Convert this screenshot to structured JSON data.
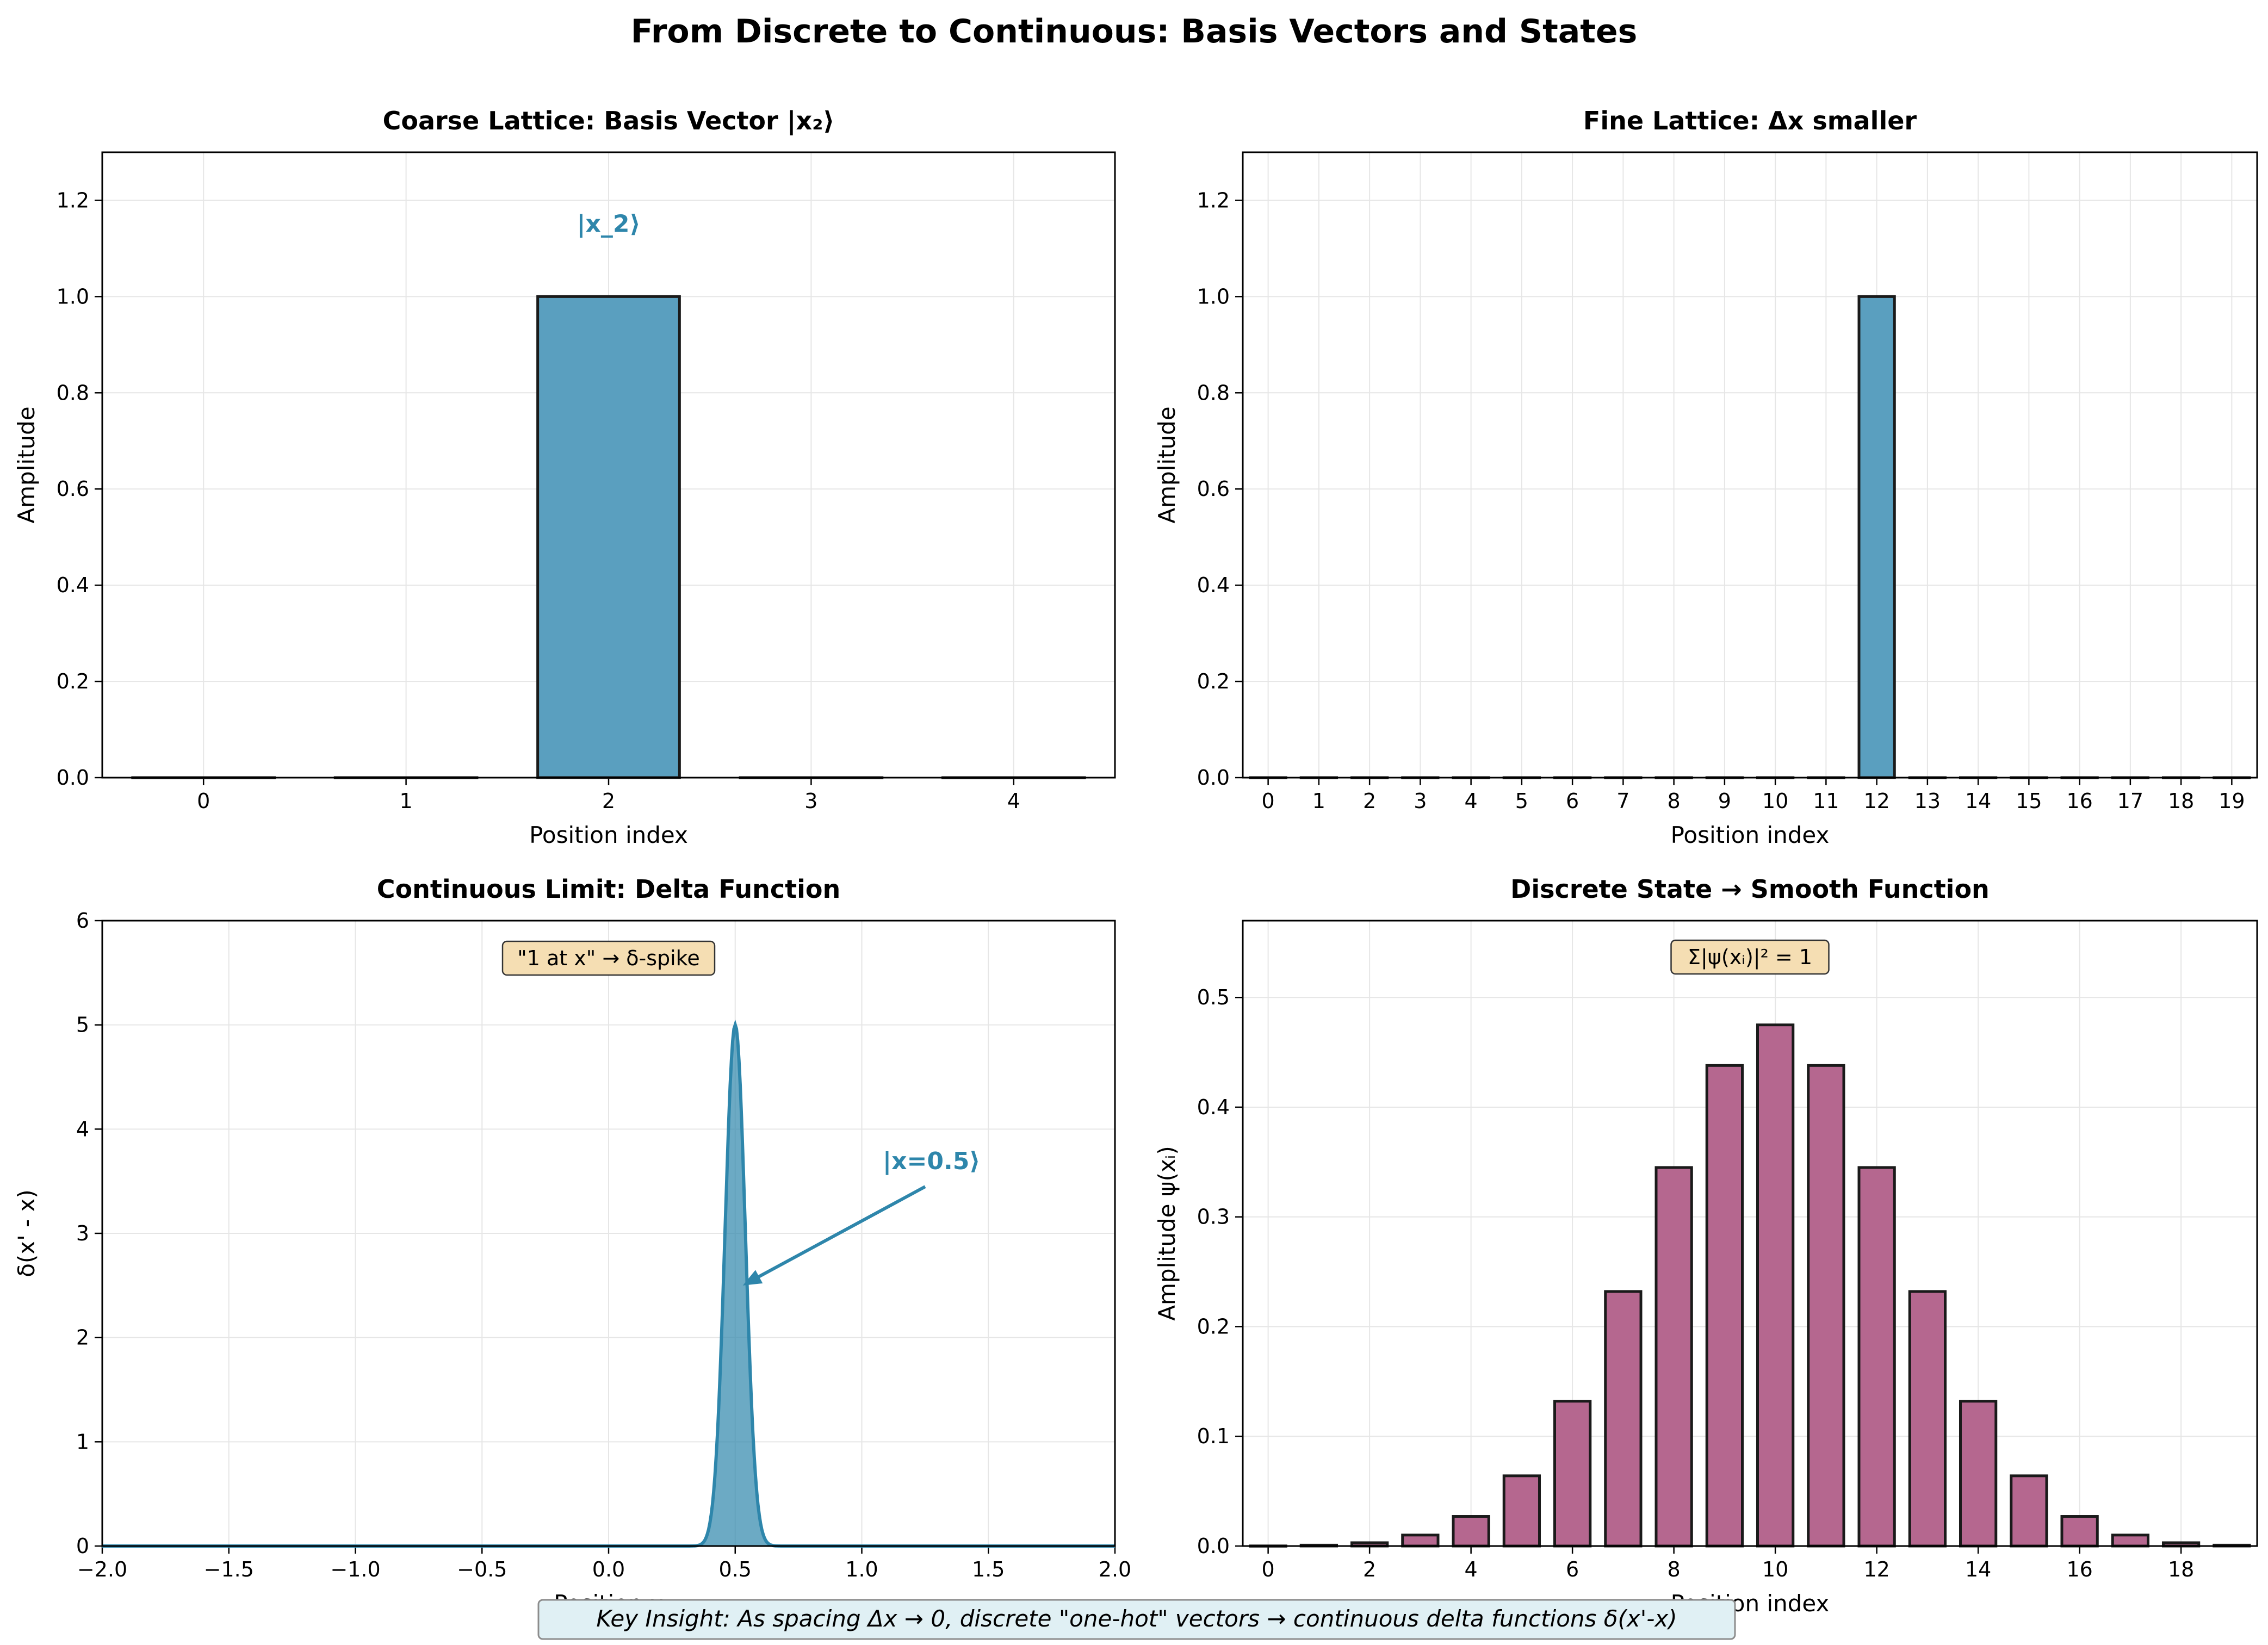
{
  "figure": {
    "title": "From Discrete to Continuous: Basis Vectors and States",
    "footnote": "Key Insight: As spacing Δx → 0, discrete \"one-hot\" vectors → continuous delta functions δ(x'-x)"
  },
  "colors": {
    "blue": "#2E86AB",
    "bar_blue": "#5a9fbf",
    "purple": "#A23B72",
    "bar_purple": "#b5678f",
    "annot_box": "#F5DEB3",
    "footnote_box": "#E0F0F4",
    "grid": "#e6e6e6"
  },
  "chart_data": [
    {
      "type": "bar",
      "title": "Coarse Lattice: Basis Vector |x₂⟩",
      "xlabel": "Position index",
      "ylabel": "Amplitude",
      "categories": [
        0,
        1,
        2,
        3,
        4
      ],
      "values": [
        0,
        0,
        1,
        0,
        0
      ],
      "ylim": [
        0,
        1.3
      ],
      "yticks": [
        "0.0",
        "0.2",
        "0.4",
        "0.6",
        "0.8",
        "1.0",
        "1.2"
      ],
      "xticks": [
        "0",
        "1",
        "2",
        "3",
        "4"
      ],
      "annotation": {
        "text": "|x_2⟩",
        "x": 2,
        "y": 1.15
      },
      "grid": true
    },
    {
      "type": "bar",
      "title": "Fine Lattice: Δx smaller",
      "xlabel": "Position index",
      "ylabel": "Amplitude",
      "categories": [
        0,
        1,
        2,
        3,
        4,
        5,
        6,
        7,
        8,
        9,
        10,
        11,
        12,
        13,
        14,
        15,
        16,
        17,
        18,
        19
      ],
      "values": [
        0,
        0,
        0,
        0,
        0,
        0,
        0,
        0,
        0,
        0,
        0,
        0,
        1,
        0,
        0,
        0,
        0,
        0,
        0,
        0
      ],
      "ylim": [
        0,
        1.3
      ],
      "yticks": [
        "0.0",
        "0.2",
        "0.4",
        "0.6",
        "0.8",
        "1.0",
        "1.2"
      ],
      "xticks": [
        "0",
        "1",
        "2",
        "3",
        "4",
        "5",
        "6",
        "7",
        "8",
        "9",
        "10",
        "11",
        "12",
        "13",
        "14",
        "15",
        "16",
        "17",
        "18",
        "19"
      ],
      "grid": true
    },
    {
      "type": "area",
      "title": "Continuous Limit: Delta Function",
      "xlabel": "Position x",
      "ylabel": "δ(x' - x)",
      "xlim": [
        -2,
        2
      ],
      "ylim": [
        0,
        6
      ],
      "peak": {
        "center": 0.5,
        "height": 5,
        "sigma": 0.04
      },
      "xticks": [
        "−2.0",
        "−1.5",
        "−1.0",
        "−0.5",
        "0.0",
        "0.5",
        "1.0",
        "1.5",
        "2.0"
      ],
      "yticks": [
        "0",
        "1",
        "2",
        "3",
        "4",
        "5",
        "6"
      ],
      "textbox": "\"1 at x\" → δ-spike",
      "annotation": {
        "text": "|x=0.5⟩",
        "text_x": 1.1,
        "text_y": 3.5,
        "arrow_x": 0.5,
        "arrow_y": 2.5
      },
      "grid": true
    },
    {
      "type": "bar",
      "title": "Discrete State → Smooth Function",
      "xlabel": "Position index",
      "ylabel": "Amplitude ψ(xᵢ)",
      "categories": [
        0,
        1,
        2,
        3,
        4,
        5,
        6,
        7,
        8,
        9,
        10,
        11,
        12,
        13,
        14,
        15,
        16,
        17,
        18,
        19
      ],
      "values": [
        0.0001,
        0.0008,
        0.003,
        0.01,
        0.027,
        0.064,
        0.132,
        0.232,
        0.345,
        0.438,
        0.475,
        0.438,
        0.345,
        0.232,
        0.132,
        0.064,
        0.027,
        0.01,
        0.003,
        0.0008
      ],
      "ylim": [
        0,
        0.57
      ],
      "yticks": [
        "0.0",
        "0.1",
        "0.2",
        "0.3",
        "0.4",
        "0.5"
      ],
      "xticks": [
        "0",
        "2",
        "4",
        "6",
        "8",
        "10",
        "12",
        "14",
        "16",
        "18"
      ],
      "textbox": "Σ|ψ(xᵢ)|² = 1",
      "grid": true
    }
  ]
}
